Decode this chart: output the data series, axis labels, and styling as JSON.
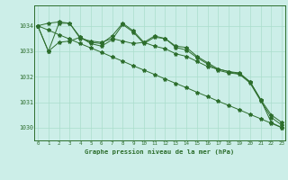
{
  "background_color": "#cceee8",
  "plot_bg_color": "#cceee8",
  "grid_color": "#aaddcc",
  "line_color": "#2d6e2d",
  "marker_color": "#2d6e2d",
  "title": "Graphe pression niveau de la mer (hPa)",
  "ylim": [
    1029.5,
    1034.8
  ],
  "yticks": [
    1030,
    1031,
    1032,
    1033,
    1034
  ],
  "xlim": [
    -0.3,
    23.3
  ],
  "xticks": [
    0,
    1,
    2,
    3,
    4,
    5,
    6,
    7,
    8,
    9,
    10,
    11,
    12,
    13,
    14,
    15,
    16,
    17,
    18,
    19,
    20,
    21,
    22,
    23
  ],
  "series1": [
    1034.0,
    1033.0,
    1034.1,
    1034.1,
    1033.5,
    1033.4,
    1033.35,
    1033.5,
    1033.4,
    1033.3,
    1033.35,
    1033.2,
    1033.1,
    1032.9,
    1032.8,
    1032.6,
    1032.4,
    1032.3,
    1032.2,
    1032.1,
    1031.8,
    1031.1,
    1030.2,
    1030.0
  ],
  "series2": [
    1034.0,
    1034.1,
    1034.15,
    1034.1,
    1033.55,
    1033.35,
    1033.3,
    1033.6,
    1034.1,
    1033.8,
    1033.35,
    1033.6,
    1033.5,
    1033.2,
    1033.15,
    1032.8,
    1032.55,
    1032.3,
    1032.2,
    1032.15,
    1031.8,
    1031.1,
    1030.5,
    1030.2
  ],
  "series3": [
    1034.0,
    1033.0,
    1033.35,
    1033.4,
    1033.55,
    1033.3,
    1033.2,
    1033.45,
    1034.05,
    1033.75,
    1033.3,
    1033.55,
    1033.5,
    1033.15,
    1033.05,
    1032.75,
    1032.5,
    1032.25,
    1032.15,
    1032.1,
    1031.75,
    1031.05,
    1030.4,
    1030.1
  ],
  "series4_straight": [
    1034.0,
    1033.83,
    1033.65,
    1033.48,
    1033.3,
    1033.13,
    1032.96,
    1032.78,
    1032.61,
    1032.43,
    1032.26,
    1032.09,
    1031.91,
    1031.74,
    1031.57,
    1031.39,
    1031.22,
    1031.04,
    1030.87,
    1030.7,
    1030.52,
    1030.35,
    1030.17,
    1030.0
  ]
}
